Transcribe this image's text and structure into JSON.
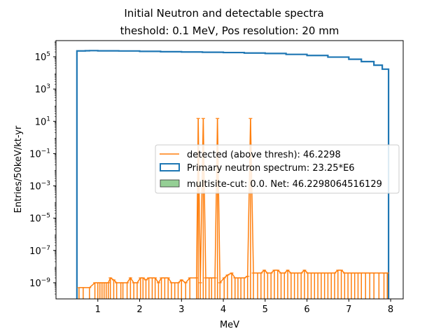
{
  "chart_data": {
    "type": "histogram",
    "title": "Initial Neutron and detectable spectra",
    "subtitle": "theshold: 0.1 MeV, Pos resolution: 20 mm",
    "xlabel": "MeV",
    "ylabel": "Entries/50keV/kt-yr",
    "xlim": [
      0.0,
      8.3
    ],
    "ylim": [
      1e-10,
      1000000.0
    ],
    "yscale": "log",
    "grid": false,
    "legend_position": "center-right",
    "x_ticks": [
      1,
      2,
      3,
      4,
      5,
      6,
      7,
      8
    ],
    "x_tick_labels": [
      "1",
      "2",
      "3",
      "4",
      "5",
      "6",
      "7",
      "8"
    ],
    "y_ticks": [
      100000.0,
      1000.0,
      10.0,
      0.1,
      0.001,
      1e-05,
      1e-07,
      1e-09
    ],
    "y_tick_labels": [
      {
        "base": "10",
        "exp": "5"
      },
      {
        "base": "10",
        "exp": "3"
      },
      {
        "base": "10",
        "exp": "1"
      },
      {
        "base": "10",
        "exp": "−1"
      },
      {
        "base": "10",
        "exp": "−3"
      },
      {
        "base": "10",
        "exp": "−5"
      },
      {
        "base": "10",
        "exp": "−7"
      },
      {
        "base": "10",
        "exp": "−9"
      }
    ],
    "series": [
      {
        "name": "Primary neutron spectrum: 23.25*E6",
        "legend_label": "Primary neutron spectrum: 23.25*E6",
        "style": "step-outline",
        "color": "#1f77b4",
        "points": [
          [
            0.5,
            1e-10
          ],
          [
            0.5,
            230000
          ],
          [
            0.7,
            235000
          ],
          [
            0.8,
            240000
          ],
          [
            1.0,
            232000
          ],
          [
            1.5,
            228000
          ],
          [
            2.0,
            215000
          ],
          [
            2.5,
            205000
          ],
          [
            3.0,
            198000
          ],
          [
            3.5,
            190000
          ],
          [
            4.0,
            182000
          ],
          [
            4.5,
            170000
          ],
          [
            5.0,
            160000
          ],
          [
            5.5,
            140000
          ],
          [
            6.0,
            120000
          ],
          [
            6.5,
            95000
          ],
          [
            7.0,
            70000
          ],
          [
            7.3,
            50000
          ],
          [
            7.6,
            30000
          ],
          [
            7.8,
            17000
          ],
          [
            7.95,
            8500
          ],
          [
            7.95,
            1e-10
          ]
        ]
      },
      {
        "name": "detected (above thresh): 46.2298",
        "legend_label": "detected (above thresh): 46.2298",
        "style": "line-errorbars",
        "color": "#ff7f0e",
        "points": [
          [
            0.55,
            5e-10
          ],
          [
            0.65,
            5e-10
          ],
          [
            0.8,
            5e-10
          ],
          [
            0.93,
            1e-09
          ],
          [
            1.0,
            1e-09
          ],
          [
            1.05,
            1e-09
          ],
          [
            1.1,
            1e-09
          ],
          [
            1.15,
            1e-09
          ],
          [
            1.2,
            1e-09
          ],
          [
            1.25,
            1e-09
          ],
          [
            1.3,
            2e-09
          ],
          [
            1.38,
            1.5e-09
          ],
          [
            1.45,
            1e-09
          ],
          [
            1.55,
            1e-09
          ],
          [
            1.6,
            1e-09
          ],
          [
            1.7,
            1e-09
          ],
          [
            1.78,
            2e-09
          ],
          [
            1.86,
            1e-09
          ],
          [
            1.94,
            1e-09
          ],
          [
            2.02,
            2e-09
          ],
          [
            2.08,
            2e-09
          ],
          [
            2.15,
            1.5e-09
          ],
          [
            2.22,
            2e-09
          ],
          [
            2.3,
            2e-09
          ],
          [
            2.37,
            2e-09
          ],
          [
            2.45,
            1e-09
          ],
          [
            2.52,
            2e-09
          ],
          [
            2.6,
            2e-09
          ],
          [
            2.68,
            2e-09
          ],
          [
            2.76,
            1e-09
          ],
          [
            2.84,
            1e-09
          ],
          [
            2.92,
            1e-09
          ],
          [
            3.0,
            1.5e-09
          ],
          [
            3.1,
            1e-09
          ],
          [
            3.2,
            2e-09
          ],
          [
            3.36,
            2e-09
          ],
          [
            3.4,
            15
          ],
          [
            3.45,
            1e-09
          ],
          [
            3.52,
            15
          ],
          [
            3.58,
            2e-09
          ],
          [
            3.66,
            2e-09
          ],
          [
            3.72,
            2e-09
          ],
          [
            3.8,
            2e-09
          ],
          [
            3.86,
            15
          ],
          [
            3.92,
            1e-09
          ],
          [
            4.02,
            2e-09
          ],
          [
            4.1,
            3e-09
          ],
          [
            4.2,
            4e-09
          ],
          [
            4.28,
            2e-09
          ],
          [
            4.35,
            2e-09
          ],
          [
            4.42,
            2e-09
          ],
          [
            4.5,
            2e-09
          ],
          [
            4.58,
            2.5e-09
          ],
          [
            4.65,
            15
          ],
          [
            4.72,
            4e-09
          ],
          [
            4.82,
            4e-09
          ],
          [
            4.9,
            4e-09
          ],
          [
            4.98,
            6e-09
          ],
          [
            5.06,
            4e-09
          ],
          [
            5.14,
            4e-09
          ],
          [
            5.22,
            6e-09
          ],
          [
            5.3,
            6e-09
          ],
          [
            5.38,
            4e-09
          ],
          [
            5.46,
            4e-09
          ],
          [
            5.54,
            6e-09
          ],
          [
            5.62,
            4e-09
          ],
          [
            5.7,
            4e-09
          ],
          [
            5.78,
            4e-09
          ],
          [
            5.86,
            4e-09
          ],
          [
            5.94,
            6e-09
          ],
          [
            6.02,
            4e-09
          ],
          [
            6.1,
            4e-09
          ],
          [
            6.18,
            4e-09
          ],
          [
            6.26,
            4e-09
          ],
          [
            6.34,
            4e-09
          ],
          [
            6.42,
            4e-09
          ],
          [
            6.5,
            4e-09
          ],
          [
            6.58,
            4e-09
          ],
          [
            6.66,
            4e-09
          ],
          [
            6.74,
            6e-09
          ],
          [
            6.82,
            6e-09
          ],
          [
            6.9,
            4e-09
          ],
          [
            6.98,
            4e-09
          ],
          [
            7.06,
            4e-09
          ],
          [
            7.14,
            4e-09
          ],
          [
            7.22,
            4e-09
          ],
          [
            7.3,
            4e-09
          ],
          [
            7.4,
            4e-09
          ],
          [
            7.5,
            4e-09
          ],
          [
            7.6,
            4e-09
          ],
          [
            7.72,
            4e-09
          ],
          [
            7.84,
            4e-09
          ],
          [
            7.92,
            4e-09
          ]
        ]
      },
      {
        "name": "multisite-cut: 0.0. Net: 46.2298064516129",
        "legend_label": "multisite-cut: 0.0. Net: 46.2298064516129",
        "style": "filled-histogram",
        "color": "#2ca02c",
        "fill_opacity": 0.5,
        "total": 0.0
      }
    ]
  }
}
